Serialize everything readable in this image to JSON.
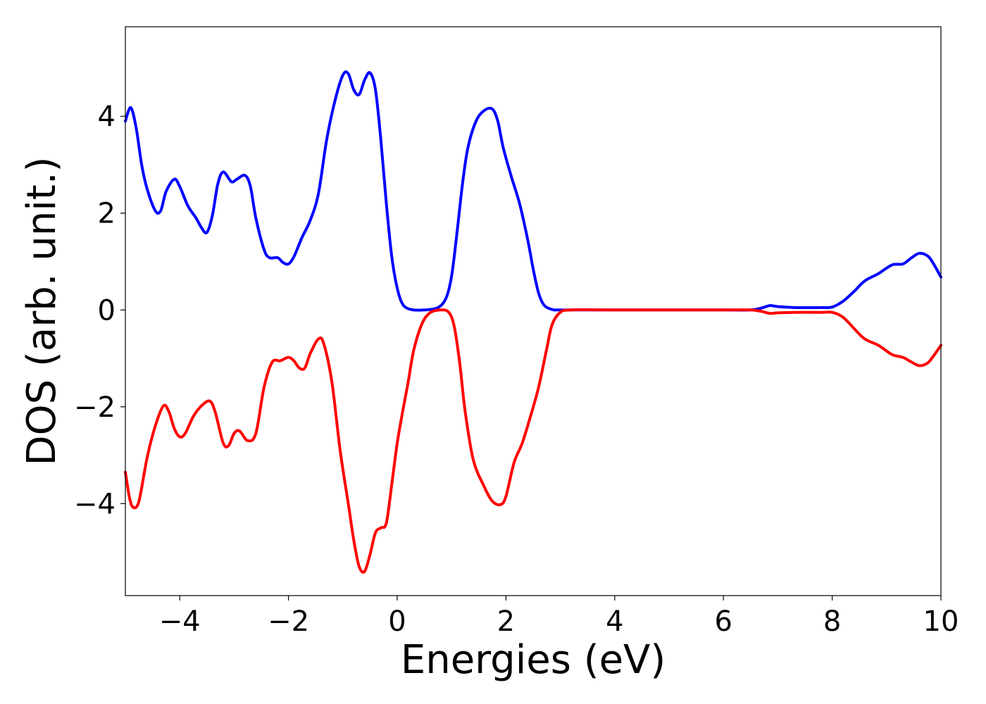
{
  "chart_data": {
    "type": "line",
    "title": "",
    "xlabel": "Energies (eV)",
    "ylabel": "DOS (arb. unit.)",
    "xlim": [
      -5,
      10
    ],
    "ylim": [
      -5.9,
      5.85
    ],
    "grid": false,
    "legend": "none",
    "x_ticks": [
      -4,
      -2,
      0,
      2,
      4,
      6,
      8,
      10
    ],
    "x_tick_labels": [
      "−4",
      "−2",
      "0",
      "2",
      "4",
      "6",
      "8",
      "10"
    ],
    "y_ticks": [
      -4,
      -2,
      0,
      2,
      4
    ],
    "y_tick_labels": [
      "−4",
      "−2",
      "0",
      "2",
      "4"
    ],
    "series": [
      {
        "color": "#0000ff",
        "points": [
          [
            -5.0,
            3.9
          ],
          [
            -4.9,
            4.18
          ],
          [
            -4.8,
            3.75
          ],
          [
            -4.7,
            3.0
          ],
          [
            -4.6,
            2.5
          ],
          [
            -4.45,
            2.05
          ],
          [
            -4.35,
            2.05
          ],
          [
            -4.25,
            2.45
          ],
          [
            -4.1,
            2.7
          ],
          [
            -4.0,
            2.55
          ],
          [
            -3.85,
            2.15
          ],
          [
            -3.7,
            1.9
          ],
          [
            -3.6,
            1.7
          ],
          [
            -3.5,
            1.6
          ],
          [
            -3.4,
            1.95
          ],
          [
            -3.3,
            2.6
          ],
          [
            -3.2,
            2.85
          ],
          [
            -3.05,
            2.65
          ],
          [
            -2.95,
            2.7
          ],
          [
            -2.8,
            2.78
          ],
          [
            -2.7,
            2.55
          ],
          [
            -2.6,
            1.9
          ],
          [
            -2.45,
            1.25
          ],
          [
            -2.35,
            1.08
          ],
          [
            -2.2,
            1.08
          ],
          [
            -2.1,
            0.98
          ],
          [
            -2.0,
            0.95
          ],
          [
            -1.9,
            1.1
          ],
          [
            -1.75,
            1.5
          ],
          [
            -1.6,
            1.85
          ],
          [
            -1.45,
            2.4
          ],
          [
            -1.3,
            3.5
          ],
          [
            -1.15,
            4.3
          ],
          [
            -1.0,
            4.85
          ],
          [
            -0.9,
            4.88
          ],
          [
            -0.8,
            4.55
          ],
          [
            -0.7,
            4.45
          ],
          [
            -0.6,
            4.75
          ],
          [
            -0.5,
            4.9
          ],
          [
            -0.4,
            4.55
          ],
          [
            -0.3,
            3.5
          ],
          [
            -0.2,
            2.2
          ],
          [
            -0.1,
            1.1
          ],
          [
            0.0,
            0.45
          ],
          [
            0.1,
            0.12
          ],
          [
            0.25,
            0.01
          ],
          [
            0.5,
            0.0
          ],
          [
            0.75,
            0.05
          ],
          [
            0.9,
            0.25
          ],
          [
            1.0,
            0.7
          ],
          [
            1.1,
            1.6
          ],
          [
            1.2,
            2.6
          ],
          [
            1.3,
            3.35
          ],
          [
            1.45,
            3.9
          ],
          [
            1.6,
            4.12
          ],
          [
            1.75,
            4.15
          ],
          [
            1.85,
            3.9
          ],
          [
            1.95,
            3.35
          ],
          [
            2.1,
            2.75
          ],
          [
            2.25,
            2.2
          ],
          [
            2.4,
            1.45
          ],
          [
            2.5,
            0.85
          ],
          [
            2.6,
            0.35
          ],
          [
            2.7,
            0.1
          ],
          [
            2.85,
            0.01
          ],
          [
            3.0,
            0.0
          ],
          [
            4.0,
            0.0
          ],
          [
            5.0,
            0.0
          ],
          [
            6.0,
            0.0
          ],
          [
            6.5,
            0.0
          ],
          [
            6.7,
            0.04
          ],
          [
            6.85,
            0.09
          ],
          [
            7.0,
            0.07
          ],
          [
            7.3,
            0.05
          ],
          [
            7.8,
            0.05
          ],
          [
            8.0,
            0.06
          ],
          [
            8.2,
            0.18
          ],
          [
            8.4,
            0.38
          ],
          [
            8.6,
            0.6
          ],
          [
            8.85,
            0.75
          ],
          [
            9.1,
            0.93
          ],
          [
            9.3,
            0.95
          ],
          [
            9.45,
            1.07
          ],
          [
            9.6,
            1.17
          ],
          [
            9.75,
            1.12
          ],
          [
            9.85,
            0.98
          ],
          [
            10.0,
            0.68
          ]
        ]
      },
      {
        "color": "#ff0000",
        "points": [
          [
            -5.0,
            -3.35
          ],
          [
            -4.92,
            -3.9
          ],
          [
            -4.85,
            -4.08
          ],
          [
            -4.75,
            -3.95
          ],
          [
            -4.6,
            -3.05
          ],
          [
            -4.45,
            -2.4
          ],
          [
            -4.3,
            -1.98
          ],
          [
            -4.2,
            -2.1
          ],
          [
            -4.1,
            -2.45
          ],
          [
            -4.0,
            -2.62
          ],
          [
            -3.9,
            -2.55
          ],
          [
            -3.75,
            -2.2
          ],
          [
            -3.6,
            -1.98
          ],
          [
            -3.45,
            -1.88
          ],
          [
            -3.35,
            -2.1
          ],
          [
            -3.2,
            -2.75
          ],
          [
            -3.1,
            -2.8
          ],
          [
            -3.0,
            -2.55
          ],
          [
            -2.9,
            -2.5
          ],
          [
            -2.75,
            -2.7
          ],
          [
            -2.6,
            -2.55
          ],
          [
            -2.45,
            -1.6
          ],
          [
            -2.3,
            -1.08
          ],
          [
            -2.15,
            -1.05
          ],
          [
            -2.0,
            -0.98
          ],
          [
            -1.9,
            -1.05
          ],
          [
            -1.8,
            -1.2
          ],
          [
            -1.7,
            -1.2
          ],
          [
            -1.6,
            -0.9
          ],
          [
            -1.45,
            -0.6
          ],
          [
            -1.35,
            -0.7
          ],
          [
            -1.2,
            -1.5
          ],
          [
            -1.05,
            -2.9
          ],
          [
            -0.9,
            -4.0
          ],
          [
            -0.8,
            -4.75
          ],
          [
            -0.7,
            -5.3
          ],
          [
            -0.6,
            -5.4
          ],
          [
            -0.5,
            -5.05
          ],
          [
            -0.4,
            -4.6
          ],
          [
            -0.3,
            -4.5
          ],
          [
            -0.2,
            -4.4
          ],
          [
            -0.1,
            -3.6
          ],
          [
            0.0,
            -2.75
          ],
          [
            0.1,
            -2.1
          ],
          [
            0.2,
            -1.5
          ],
          [
            0.3,
            -0.85
          ],
          [
            0.45,
            -0.3
          ],
          [
            0.6,
            -0.06
          ],
          [
            0.8,
            0.0
          ],
          [
            0.95,
            -0.05
          ],
          [
            1.05,
            -0.35
          ],
          [
            1.15,
            -1.1
          ],
          [
            1.25,
            -2.1
          ],
          [
            1.4,
            -3.1
          ],
          [
            1.6,
            -3.65
          ],
          [
            1.75,
            -3.95
          ],
          [
            1.9,
            -4.02
          ],
          [
            2.0,
            -3.85
          ],
          [
            2.15,
            -3.15
          ],
          [
            2.3,
            -2.75
          ],
          [
            2.45,
            -2.2
          ],
          [
            2.6,
            -1.6
          ],
          [
            2.75,
            -0.8
          ],
          [
            2.85,
            -0.3
          ],
          [
            3.0,
            -0.05
          ],
          [
            3.2,
            0.0
          ],
          [
            4.0,
            0.0
          ],
          [
            5.0,
            0.0
          ],
          [
            6.0,
            0.0
          ],
          [
            6.5,
            0.0
          ],
          [
            6.7,
            -0.03
          ],
          [
            6.85,
            -0.07
          ],
          [
            7.0,
            -0.06
          ],
          [
            7.3,
            -0.05
          ],
          [
            7.8,
            -0.05
          ],
          [
            8.0,
            -0.05
          ],
          [
            8.2,
            -0.15
          ],
          [
            8.4,
            -0.38
          ],
          [
            8.6,
            -0.6
          ],
          [
            8.85,
            -0.73
          ],
          [
            9.1,
            -0.92
          ],
          [
            9.3,
            -0.98
          ],
          [
            9.45,
            -1.07
          ],
          [
            9.6,
            -1.15
          ],
          [
            9.75,
            -1.1
          ],
          [
            9.85,
            -0.97
          ],
          [
            10.0,
            -0.73
          ]
        ]
      }
    ]
  }
}
